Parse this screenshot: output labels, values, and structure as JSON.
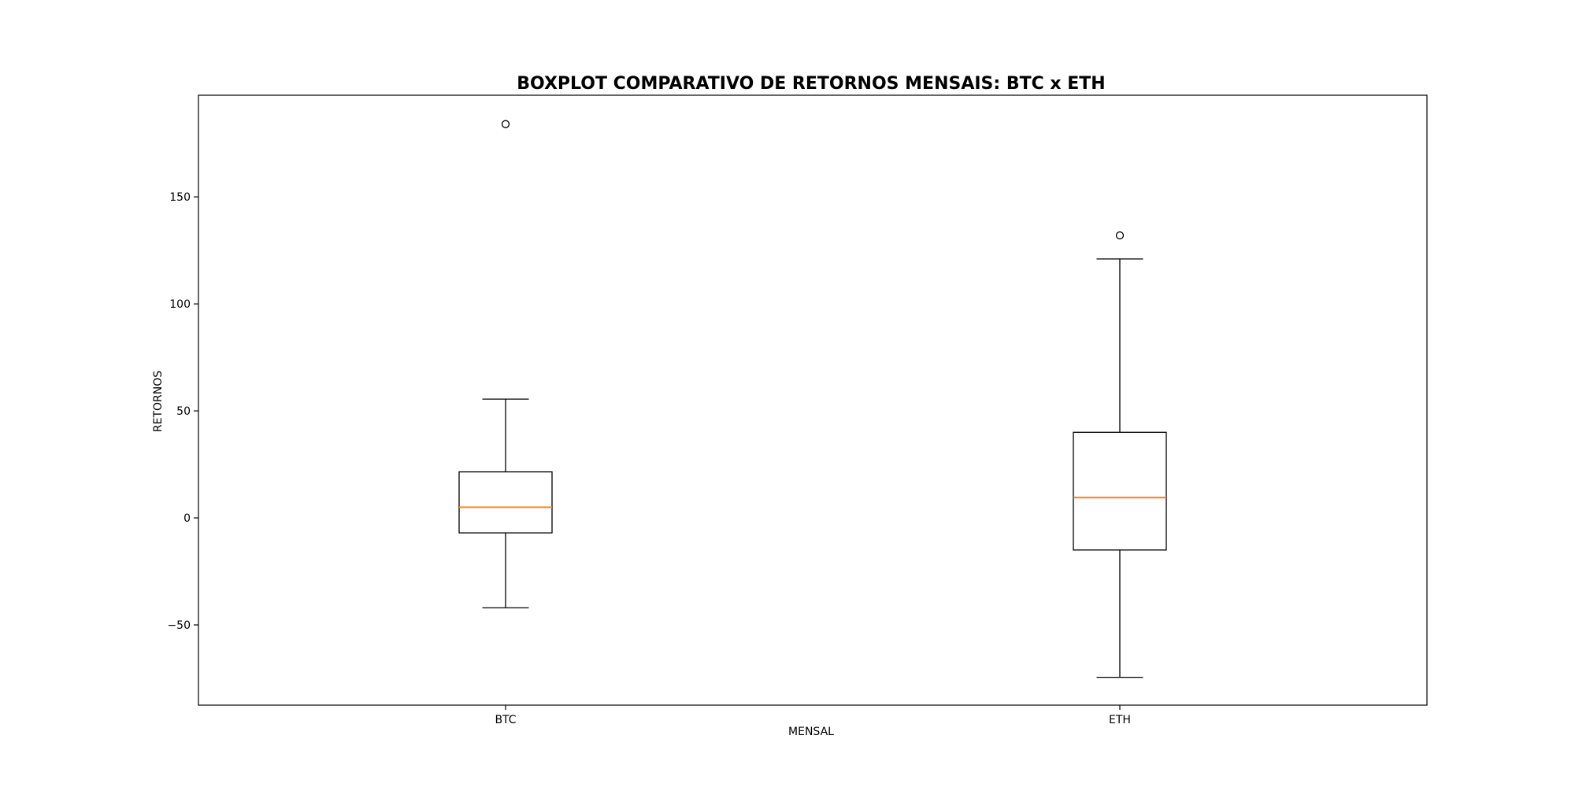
{
  "chart_data": {
    "type": "boxplot",
    "title": "BOXPLOT COMPARATIVO DE RETORNOS MENSAIS: BTC x ETH",
    "xlabel": "MENSAL",
    "ylabel": "RETORNOS",
    "categories": [
      "BTC",
      "ETH"
    ],
    "ylim": [
      -87.5,
      197.5
    ],
    "yticks": [
      -50,
      0,
      50,
      100,
      150
    ],
    "ytick_labels": [
      "−50",
      "0",
      "50",
      "100",
      "150"
    ],
    "grid": false,
    "legend": "none",
    "series": [
      {
        "category": "BTC",
        "whisker_low": -42,
        "q1": -7,
        "median": 5,
        "q3": 21.5,
        "whisker_high": 55.5,
        "outliers": [
          184
        ]
      },
      {
        "category": "ETH",
        "whisker_low": -74.5,
        "q1": -15,
        "median": 9.5,
        "q3": 40,
        "whisker_high": 121,
        "outliers": [
          132
        ]
      }
    ],
    "colors": {
      "box": "#000000",
      "median": "#ff7f0e",
      "whisker": "#000000",
      "flier": "#000000"
    }
  }
}
